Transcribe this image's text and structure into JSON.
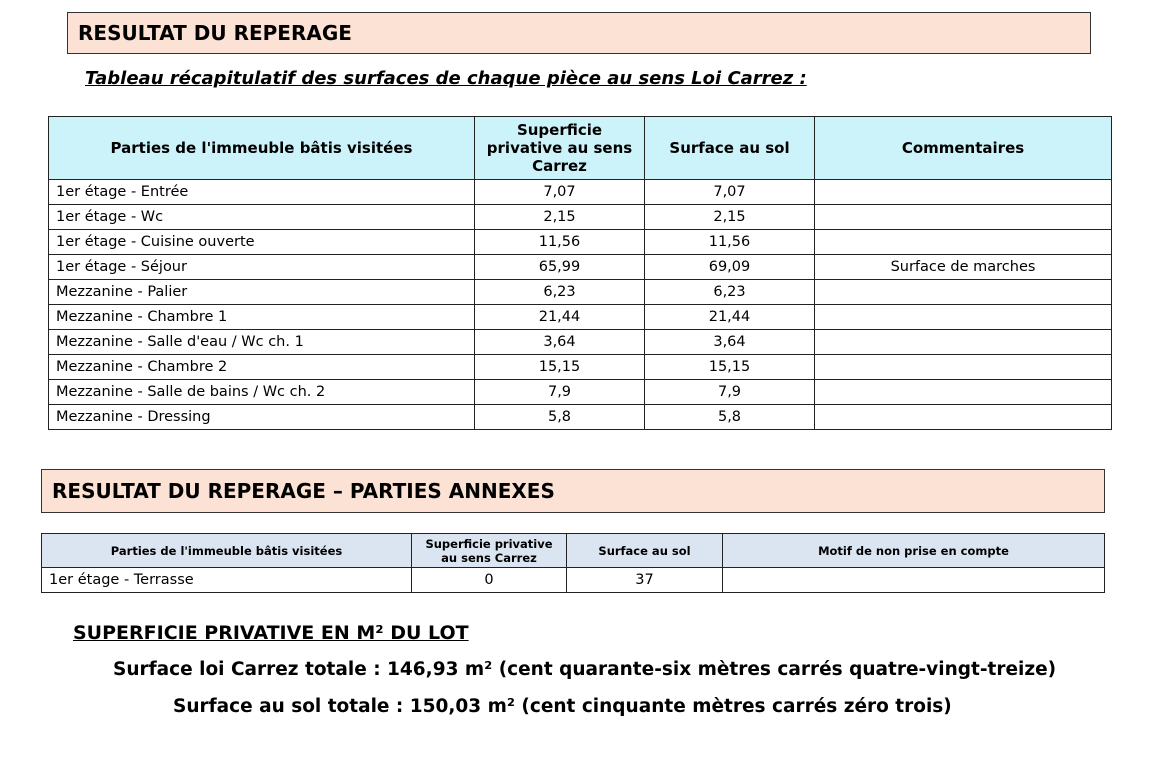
{
  "section1": {
    "title": "RESULTAT DU REPERAGE",
    "subtitle": "Tableau récapitulatif des surfaces de chaque pièce au sens Loi Carrez :",
    "headers": [
      "Parties de l'immeuble bâtis visitées",
      "Superficie privative au sens Carrez",
      "Surface au sol",
      "Commentaires"
    ],
    "rows": [
      {
        "piece": "1er étage - Entrée",
        "carrez": "7,07",
        "sol": "7,07",
        "comment": ""
      },
      {
        "piece": "1er étage - Wc",
        "carrez": "2,15",
        "sol": "2,15",
        "comment": ""
      },
      {
        "piece": "1er étage - Cuisine ouverte",
        "carrez": "11,56",
        "sol": "11,56",
        "comment": ""
      },
      {
        "piece": "1er étage - Séjour",
        "carrez": "65,99",
        "sol": "69,09",
        "comment": "Surface de marches"
      },
      {
        "piece": "Mezzanine - Palier",
        "carrez": "6,23",
        "sol": "6,23",
        "comment": ""
      },
      {
        "piece": "Mezzanine - Chambre 1",
        "carrez": "21,44",
        "sol": "21,44",
        "comment": ""
      },
      {
        "piece": "Mezzanine - Salle d'eau / Wc ch. 1",
        "carrez": "3,64",
        "sol": "3,64",
        "comment": ""
      },
      {
        "piece": "Mezzanine - Chambre 2",
        "carrez": "15,15",
        "sol": "15,15",
        "comment": ""
      },
      {
        "piece": "Mezzanine - Salle de bains / Wc ch. 2",
        "carrez": "7,9",
        "sol": "7,9",
        "comment": ""
      },
      {
        "piece": "Mezzanine - Dressing",
        "carrez": "5,8",
        "sol": "5,8",
        "comment": ""
      }
    ]
  },
  "section2": {
    "title": "RESULTAT DU REPERAGE – PARTIES ANNEXES",
    "headers": [
      "Parties de l'immeuble bâtis visitées",
      "Superficie privative au sens Carrez",
      "Surface au sol",
      "Motif de non prise en compte"
    ],
    "rows": [
      {
        "piece": "1er étage - Terrasse",
        "carrez": "0",
        "sol": "37",
        "motif": ""
      }
    ]
  },
  "summary": {
    "heading": "SUPERFICIE PRIVATIVE EN M² DU LOT",
    "carrez_total": "Surface loi Carrez totale : 146,93 m² (cent quarante-six mètres carrés quatre-vingt-treize)",
    "sol_total": "Surface au sol totale : 150,03 m² (cent cinquante mètres carrés zéro trois)"
  }
}
